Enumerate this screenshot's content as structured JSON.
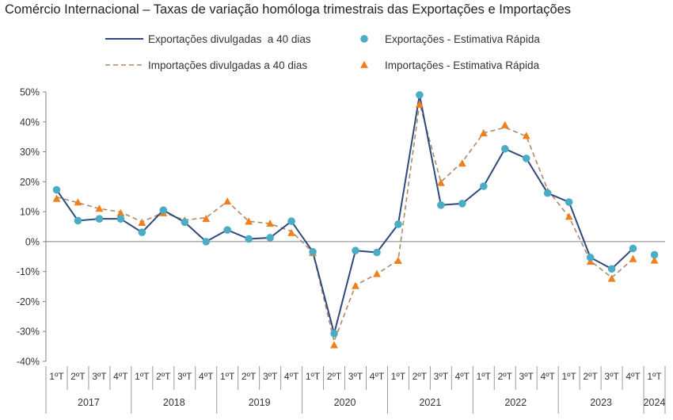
{
  "chart_data": {
    "type": "line",
    "title": "Comércio Internacional – Taxas de variação homóloga trimestrais das Exportações e Importações",
    "xlabel": "",
    "ylabel": "",
    "ylim": [
      -40,
      50
    ],
    "yticks": [
      -40,
      -30,
      -20,
      -10,
      0,
      10,
      20,
      30,
      40,
      50
    ],
    "ytick_suffix": "%",
    "grid": false,
    "legend_position": "top",
    "categories": [
      "1ºT",
      "2ºT",
      "3ºT",
      "4ºT",
      "1ºT",
      "2ºT",
      "3ºT",
      "4ºT",
      "1ºT",
      "2ºT",
      "3ºT",
      "4ºT",
      "1ºT",
      "2ºT",
      "3ºT",
      "4ºT",
      "1ºT",
      "2ºT",
      "3ºT",
      "4ºT",
      "1ºT",
      "2ºT",
      "3ºT",
      "4ºT",
      "1ºT",
      "2ºT",
      "3ºT",
      "4ºT",
      "1ºT"
    ],
    "years": [
      {
        "label": "2017",
        "quarters": 4
      },
      {
        "label": "2018",
        "quarters": 4
      },
      {
        "label": "2019",
        "quarters": 4
      },
      {
        "label": "2020",
        "quarters": 4
      },
      {
        "label": "2021",
        "quarters": 4
      },
      {
        "label": "2022",
        "quarters": 4
      },
      {
        "label": "2023",
        "quarters": 4
      },
      {
        "label": "2024",
        "quarters": 1
      }
    ],
    "series": [
      {
        "name": "Exportações divulgadas  a 40 dias",
        "style": "solid-line",
        "color": "#2e4a7d",
        "values": [
          17.3,
          7.0,
          7.6,
          7.6,
          3.1,
          10.5,
          6.5,
          0.0,
          3.9,
          0.9,
          1.3,
          6.8,
          -3.4,
          -30.7,
          -3.0,
          -3.6,
          5.8,
          49.0,
          12.2,
          12.7,
          18.5,
          31.0,
          27.8,
          16.2,
          13.2,
          -5.3,
          -9.1,
          -2.3,
          null
        ]
      },
      {
        "name": "Exportações - Estimativa Rápida",
        "style": "circle-markers",
        "color": "#4bacc6",
        "values": [
          17.3,
          7.0,
          7.6,
          7.6,
          3.1,
          10.5,
          6.5,
          0.0,
          3.9,
          0.9,
          1.3,
          6.8,
          -3.4,
          -30.7,
          -3.0,
          -3.6,
          5.8,
          49.0,
          12.2,
          12.7,
          18.5,
          31.0,
          27.8,
          16.2,
          13.2,
          -5.3,
          -9.1,
          -2.3,
          -4.4
        ]
      },
      {
        "name": "Importações divulgadas a 40 dias",
        "style": "dashed-line",
        "color": "#b08968",
        "values": [
          14.9,
          13.0,
          11.0,
          9.9,
          6.6,
          9.7,
          7.2,
          8.0,
          13.4,
          6.8,
          6.0,
          3.4,
          -3.6,
          -33.3,
          -14.6,
          -10.8,
          -6.2,
          46.2,
          19.9,
          26.6,
          36.3,
          38.1,
          35.2,
          17.3,
          8.2,
          -6.4,
          -12.0,
          -5.8,
          null
        ]
      },
      {
        "name": "Importações - Estimativa Rápida",
        "style": "triangle-markers",
        "color": "#f07f1e",
        "values": [
          14.3,
          13.1,
          11.0,
          9.5,
          6.3,
          9.5,
          7.1,
          7.6,
          13.4,
          6.7,
          6.0,
          2.9,
          -3.8,
          -34.6,
          -14.8,
          -10.8,
          -6.4,
          45.8,
          19.6,
          26.1,
          36.2,
          38.9,
          35.3,
          16.7,
          8.3,
          -6.7,
          -12.4,
          -5.8,
          -6.3
        ]
      }
    ]
  }
}
